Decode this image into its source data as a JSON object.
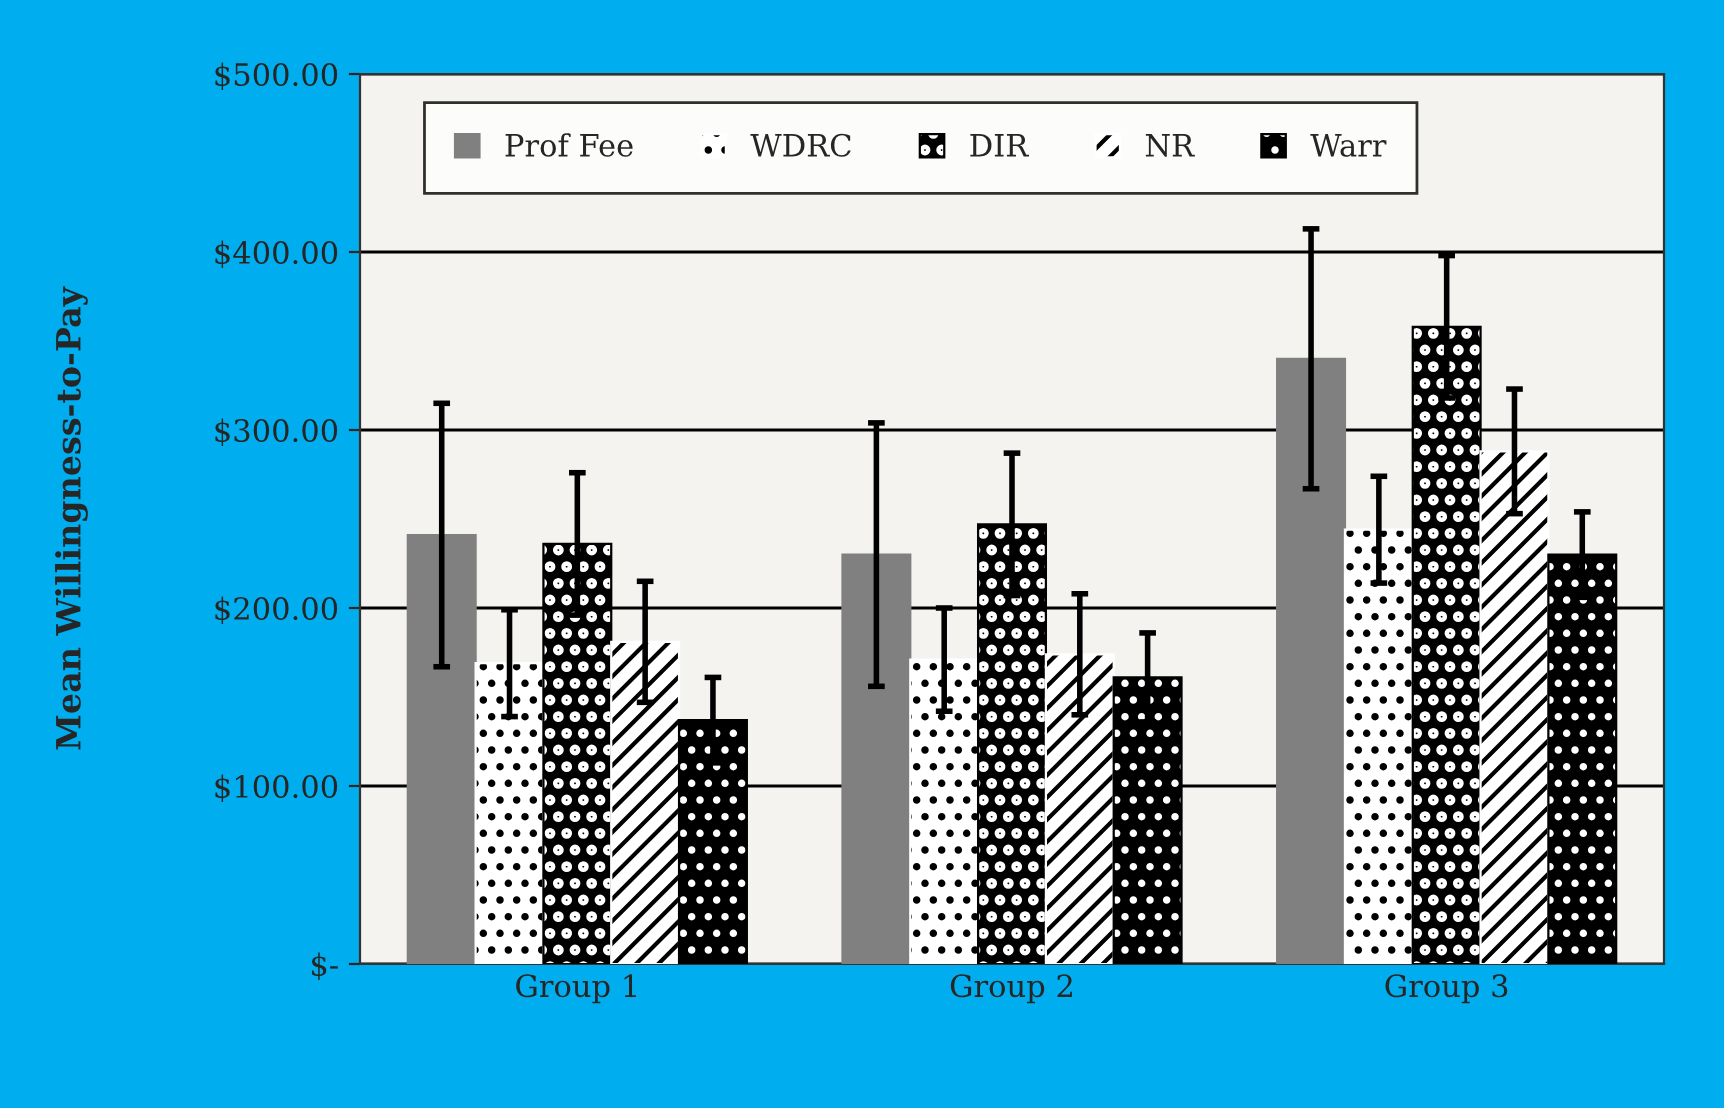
{
  "chart_data": {
    "type": "bar",
    "ylabel": "Mean Willingness-to-Pay",
    "categories": [
      "Group 1",
      "Group 2",
      "Group 3"
    ],
    "series": [
      {
        "name": "Prof Fee",
        "color": "#808080",
        "values": [
          241,
          230,
          340
        ],
        "errors": [
          74,
          74,
          73
        ]
      },
      {
        "name": "WDRC",
        "color": "#ffffff",
        "values": [
          169,
          171,
          244
        ],
        "errors": [
          30,
          29,
          30
        ]
      },
      {
        "name": "DIR",
        "color": "#000000",
        "values": [
          236,
          247,
          358
        ],
        "errors": [
          40,
          40,
          40
        ]
      },
      {
        "name": "NR",
        "color": "#ffffff",
        "values": [
          181,
          174,
          288
        ],
        "errors": [
          34,
          34,
          35
        ]
      },
      {
        "name": "Warr",
        "color": "#000000",
        "values": [
          137,
          161,
          230
        ],
        "errors": [
          24,
          25,
          24
        ]
      }
    ],
    "ylim": [
      0,
      500
    ],
    "yticks": [
      {
        "value": 0,
        "label": "$-"
      },
      {
        "value": 100,
        "label": "$100.00"
      },
      {
        "value": 200,
        "label": "$200.00"
      },
      {
        "value": 300,
        "label": "$300.00"
      },
      {
        "value": 400,
        "label": "$400.00"
      },
      {
        "value": 500,
        "label": "$500.00"
      }
    ],
    "grid": "y",
    "legend": "top"
  }
}
